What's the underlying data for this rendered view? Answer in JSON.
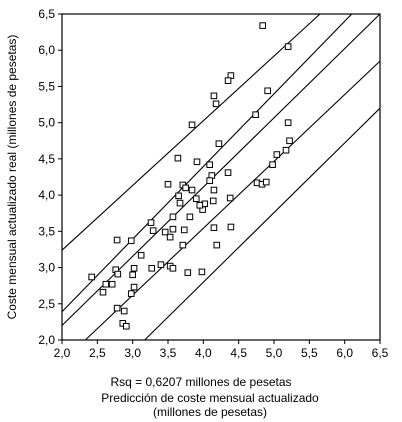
{
  "chart_data": {
    "type": "scatter",
    "ylabel": "Coste mensual actualizado real (millones de pesetas)",
    "annotation": "Rsq = 0,6207 millones de pesetas",
    "xlabel": [
      "Predicción de coste mensual actualizado",
      "(millones de pesetas)"
    ],
    "xlim": [
      2.0,
      6.5
    ],
    "ylim": [
      2.0,
      6.5
    ],
    "xticks": [
      {
        "value": 2.0,
        "label": "2,0"
      },
      {
        "value": 2.5,
        "label": "2,5"
      },
      {
        "value": 3.0,
        "label": "3,0"
      },
      {
        "value": 3.5,
        "label": "3,5"
      },
      {
        "value": 4.0,
        "label": "4,0"
      },
      {
        "value": 4.5,
        "label": "4,5"
      },
      {
        "value": 5.0,
        "label": "5,0"
      },
      {
        "value": 5.5,
        "label": "5,5"
      },
      {
        "value": 6.0,
        "label": "6,0"
      },
      {
        "value": 6.5,
        "label": "6,5"
      }
    ],
    "yticks": [
      {
        "value": 2.0,
        "label": "2,0"
      },
      {
        "value": 2.5,
        "label": "2,5"
      },
      {
        "value": 3.0,
        "label": "3,0"
      },
      {
        "value": 3.5,
        "label": "3,5"
      },
      {
        "value": 4.0,
        "label": "4,0"
      },
      {
        "value": 4.5,
        "label": "4,5"
      },
      {
        "value": 5.0,
        "label": "5,0"
      },
      {
        "value": 5.5,
        "label": "5,5"
      },
      {
        "value": 6.0,
        "label": "6,0"
      },
      {
        "value": 6.5,
        "label": "6,5"
      }
    ],
    "color": "#000000",
    "x": [
      4.84,
      5.2,
      4.39,
      4.35,
      4.15,
      4.18,
      4.91,
      4.74,
      3.84,
      5.2,
      5.22,
      4.22,
      5.17,
      5.04,
      3.64,
      3.91,
      4.09,
      4.98,
      4.12,
      4.35,
      3.71,
      3.5,
      3.75,
      4.76,
      4.83,
      4.89,
      3.84,
      4.09,
      4.15,
      3.9,
      3.65,
      4.38,
      4.14,
      4.02,
      3.99,
      3.95,
      3.67,
      3.81,
      3.57,
      3.26,
      2.78,
      2.98,
      3.29,
      3.46,
      3.53,
      3.73,
      3.57,
      4.15,
      4.39,
      3.12,
      4.19,
      3.71,
      3.4,
      3.53,
      3.57,
      3.27,
      3.78,
      3.98,
      3.02,
      2.76,
      2.79,
      3.0,
      2.42,
      2.62,
      2.71,
      2.58,
      3.02,
      2.98,
      2.78,
      2.88,
      2.86,
      2.91
    ],
    "y": [
      6.34,
      6.05,
      5.65,
      5.58,
      5.37,
      5.26,
      5.44,
      5.11,
      4.97,
      5.0,
      4.75,
      4.71,
      4.62,
      4.56,
      4.51,
      4.46,
      4.42,
      4.42,
      4.27,
      4.31,
      4.14,
      4.15,
      4.1,
      4.17,
      4.15,
      4.18,
      4.07,
      4.2,
      4.07,
      3.95,
      3.99,
      3.96,
      3.92,
      3.88,
      3.8,
      3.86,
      3.89,
      3.7,
      3.7,
      3.62,
      3.38,
      3.37,
      3.51,
      3.49,
      3.42,
      3.52,
      3.53,
      3.55,
      3.56,
      3.17,
      3.31,
      3.31,
      3.04,
      3.02,
      2.99,
      2.99,
      2.93,
      2.94,
      2.99,
      2.97,
      2.91,
      2.9,
      2.87,
      2.77,
      2.77,
      2.66,
      2.73,
      2.64,
      2.44,
      2.4,
      2.23,
      2.19
    ],
    "lines": [
      {
        "x": [
          2.0,
          5.65
        ],
        "y": [
          3.24,
          6.5
        ]
      },
      {
        "x": [
          2.0,
          6.1
        ],
        "y": [
          2.39,
          6.5
        ]
      },
      {
        "x": [
          2.0,
          6.5
        ],
        "y": [
          2.2,
          6.5
        ]
      },
      {
        "x": [
          2.33,
          6.5
        ],
        "y": [
          2.0,
          5.85
        ]
      },
      {
        "x": [
          3.17,
          6.5
        ],
        "y": [
          2.0,
          5.2
        ]
      }
    ]
  }
}
